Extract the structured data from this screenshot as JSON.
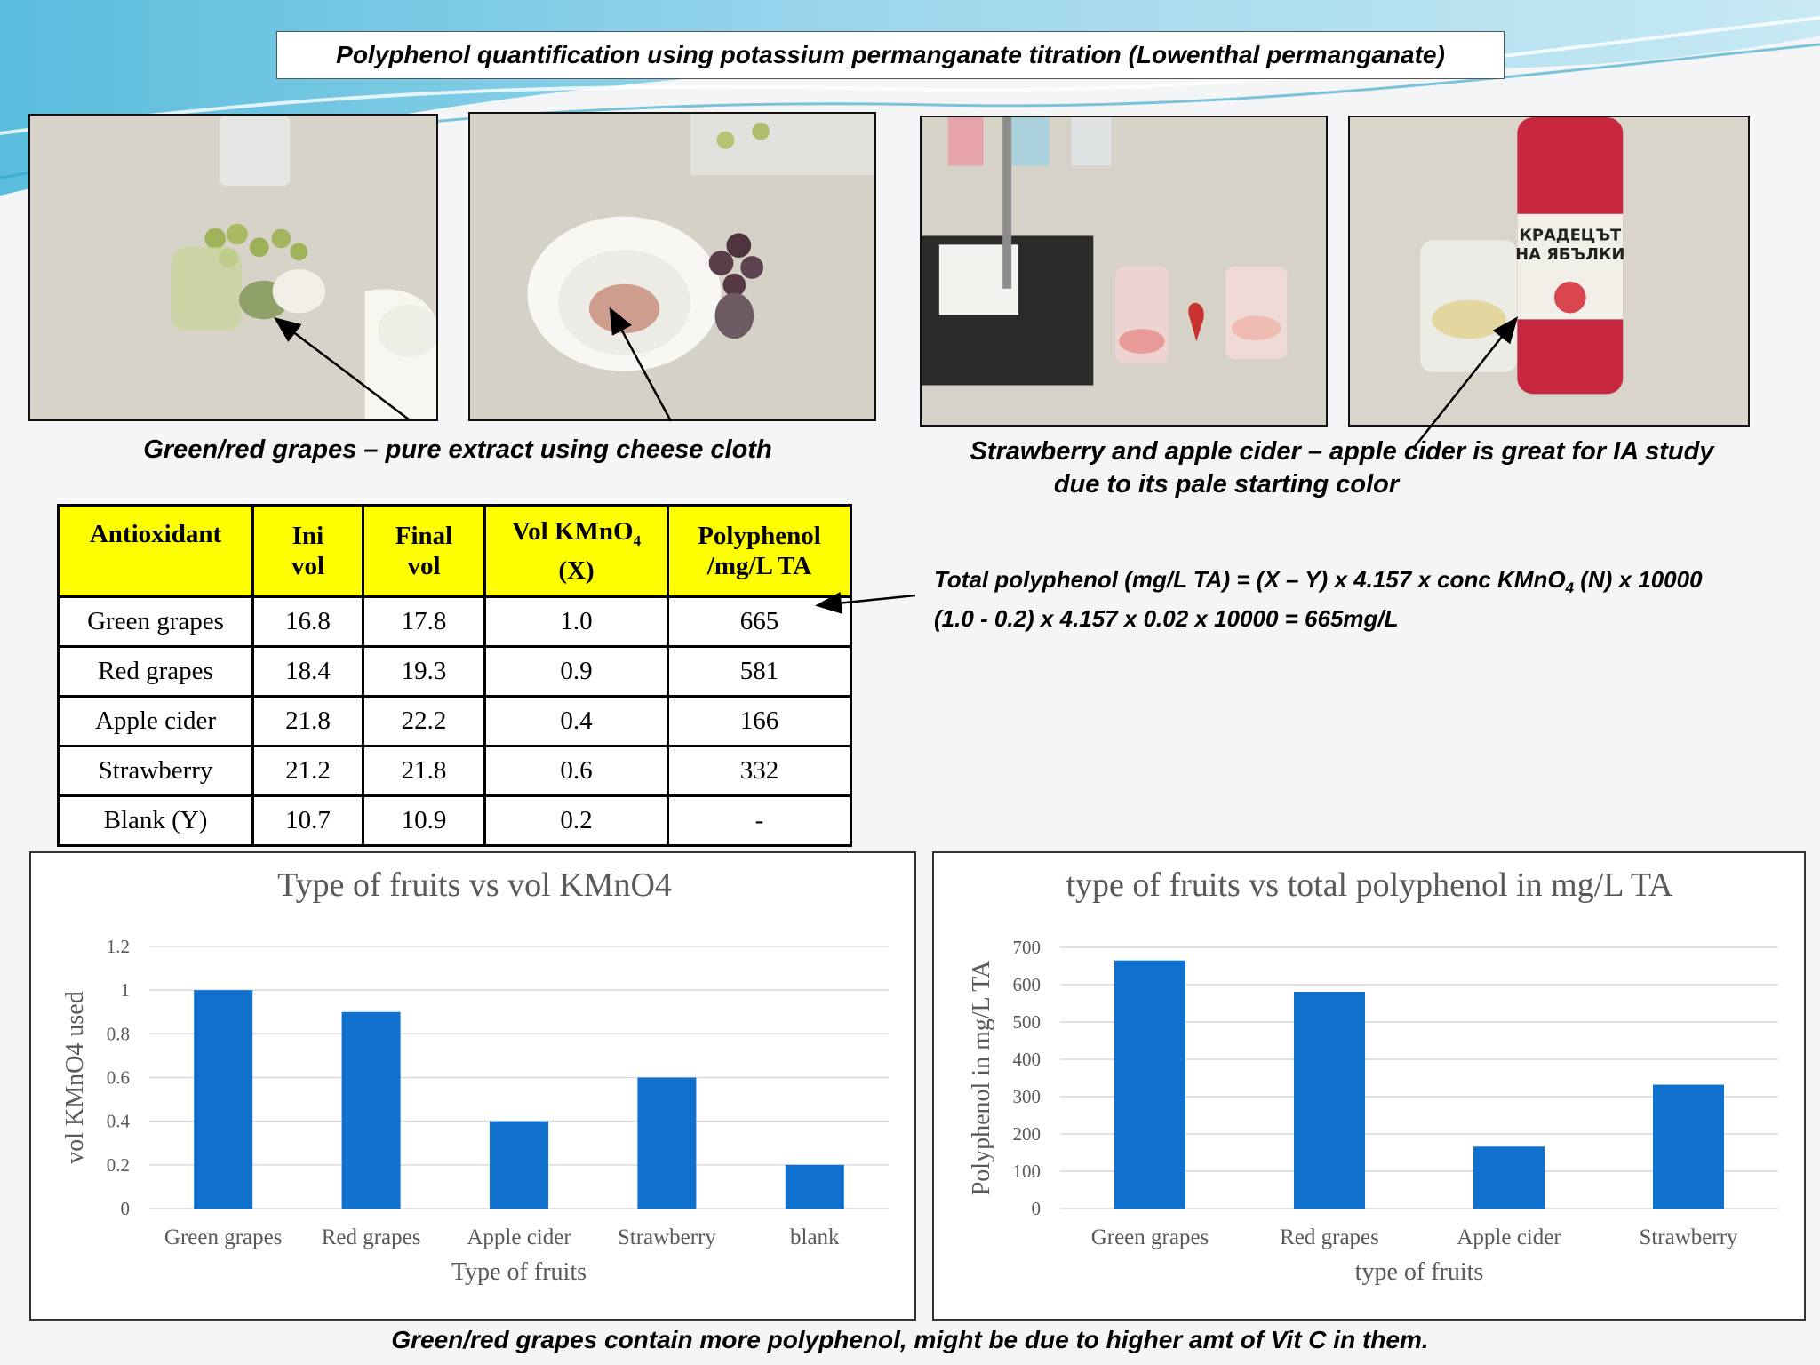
{
  "title": "Polyphenol quantification using potassium permanganate titration (Lowenthal permanganate)",
  "captions": {
    "grapes": "Green/red grapes – pure extract using cheese cloth",
    "cider_line1": "Strawberry and apple cider – apple cider is great for IA study",
    "cider_line2": "due to its pale starting color"
  },
  "photos": [
    {
      "name": "green-grapes-photo"
    },
    {
      "name": "red-grape-mortar-photo"
    },
    {
      "name": "strawberry-titration-photo"
    },
    {
      "name": "apple-cider-photo",
      "can_text": "КРАДЕЦЪТ НА ЯБЪЛКИ"
    }
  ],
  "table": {
    "headers": [
      "Antioxidant",
      "Ini vol",
      "Final vol",
      "Vol KMnO4 (X)",
      "Polyphenol /mg/L TA"
    ],
    "header_lines": [
      [
        "Antioxidant"
      ],
      [
        "Ini",
        "vol"
      ],
      [
        "Final",
        "vol"
      ],
      [
        "Vol KMnO",
        "(X)"
      ],
      [
        "Polyphenol",
        "/mg/L TA"
      ]
    ],
    "rows": [
      [
        "Green grapes",
        "16.8",
        "17.8",
        "1.0",
        "665"
      ],
      [
        "Red grapes",
        "18.4",
        "19.3",
        "0.9",
        "581"
      ],
      [
        "Apple cider",
        "21.8",
        "22.2",
        "0.4",
        "166"
      ],
      [
        "Strawberry",
        "21.2",
        "21.8",
        "0.6",
        "332"
      ],
      [
        "Blank (Y)",
        "10.7",
        "10.9",
        "0.2",
        "-"
      ]
    ]
  },
  "formula": {
    "line1_a": "Total polyphenol (mg/L TA) = (X – Y) x 4.157 x conc KMnO",
    "line1_sub": "4",
    "line1_b": " (N) x 10000",
    "line2": "(1.0 - 0.2) x 4.157 x 0.02 x 10000 = 665mg/L"
  },
  "chart_data": [
    {
      "type": "bar",
      "title": "Type of fruits vs vol KMnO4",
      "categories": [
        "Green grapes",
        "Red grapes",
        "Apple cider",
        "Strawberry",
        "blank"
      ],
      "values": [
        1.0,
        0.9,
        0.4,
        0.6,
        0.2
      ],
      "xlabel": "Type of fruits",
      "ylabel": "vol KMnO4 used",
      "ylim": [
        0,
        1.2
      ],
      "yticks": [
        0,
        0.2,
        0.4,
        0.6,
        0.8,
        1,
        1.2
      ],
      "ytick_labels": [
        "0",
        "0.2",
        "0.4",
        "0.6",
        "0.8",
        "1",
        "1.2"
      ],
      "grid": true,
      "color": "#1070cd"
    },
    {
      "type": "bar",
      "title": "type of fruits vs total polyphenol in mg/L TA",
      "categories": [
        "Green grapes",
        "Red grapes",
        "Apple cider",
        "Strawberry"
      ],
      "values": [
        665,
        581,
        166,
        332
      ],
      "xlabel": "type of fruits",
      "ylabel": "Polyphenol in mg/L TA",
      "ylim": [
        0,
        700
      ],
      "yticks": [
        0,
        100,
        200,
        300,
        400,
        500,
        600,
        700
      ],
      "ytick_labels": [
        "0",
        "100",
        "200",
        "300",
        "400",
        "500",
        "600",
        "700"
      ],
      "grid": true,
      "color": "#1070cd"
    }
  ],
  "conclusion": "Green/red grapes contain more polyphenol, might be due to higher amt of Vit C in them."
}
